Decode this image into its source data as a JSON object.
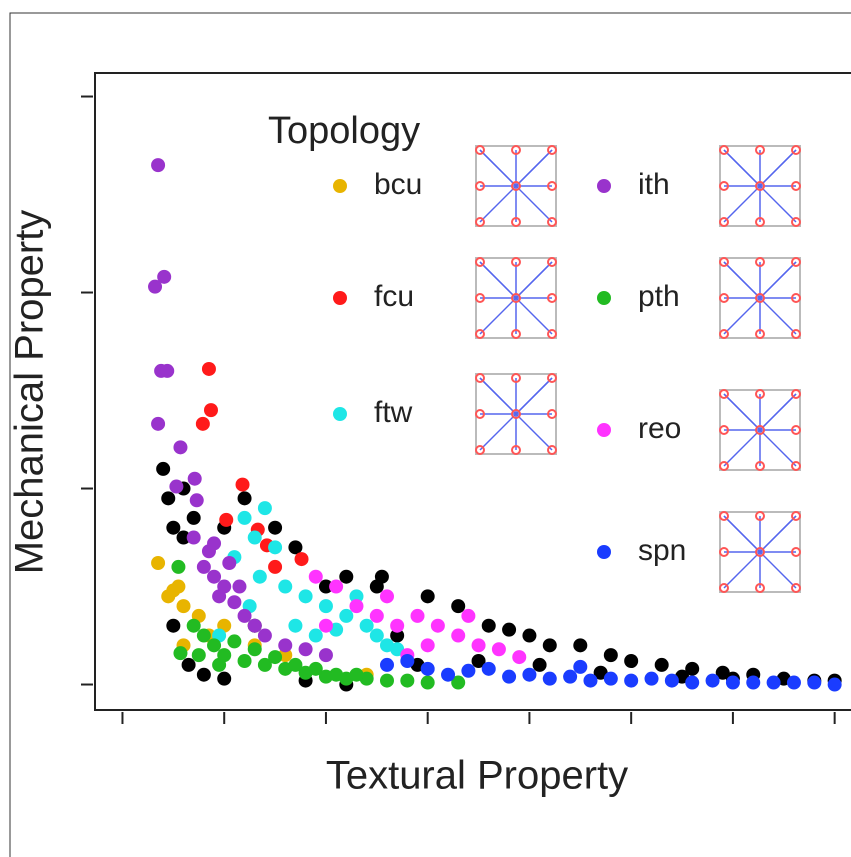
{
  "chart_data": {
    "type": "scatter",
    "x_label": "Textural Property",
    "y_label": "Mechanical Property",
    "legend_title": "Topology",
    "xlim": [
      -0.27,
      7.2
    ],
    "ylim": [
      -0.13,
      3.12
    ],
    "xticks": [
      0,
      1,
      2,
      3,
      4,
      5,
      6,
      7
    ],
    "yticks": [
      0,
      1,
      2,
      3
    ],
    "series": [
      {
        "color": "#000000",
        "x": [
          0.4,
          0.45,
          0.5,
          0.6,
          0.7,
          0.5,
          0.65,
          0.8,
          1.0,
          1.3,
          1.5,
          1.7,
          2.0,
          2.2,
          2.5,
          2.55,
          3.0,
          3.3,
          3.6,
          4.0,
          4.2,
          4.5,
          4.8,
          5.0,
          5.3,
          5.6,
          5.9,
          6.2,
          6.5,
          6.8,
          7.0,
          1.8,
          2.2,
          2.9,
          3.5,
          4.1,
          4.7,
          5.5,
          6.0,
          1.2,
          1.0,
          2.7,
          3.8,
          0.6
        ],
        "values": [
          1.1,
          0.95,
          0.8,
          0.75,
          0.85,
          0.3,
          0.1,
          0.05,
          0.03,
          0.3,
          0.8,
          0.7,
          0.5,
          0.55,
          0.5,
          0.55,
          0.45,
          0.4,
          0.3,
          0.25,
          0.2,
          0.2,
          0.15,
          0.12,
          0.1,
          0.08,
          0.06,
          0.05,
          0.03,
          0.02,
          0.02,
          0.02,
          0.0,
          0.1,
          0.12,
          0.1,
          0.06,
          0.04,
          0.03,
          0.95,
          0.8,
          0.25,
          0.28,
          1.0
        ]
      },
      {
        "name": "bcu",
        "color": "#e8b400",
        "x": [
          0.35,
          0.55,
          0.5,
          0.6,
          0.45,
          0.6,
          0.75,
          1.0,
          1.3,
          1.6,
          0.85,
          2.4
        ],
        "values": [
          0.62,
          0.5,
          0.48,
          0.4,
          0.45,
          0.2,
          0.35,
          0.3,
          0.2,
          0.15,
          0.25,
          0.05
        ]
      },
      {
        "name": "fcu",
        "color": "#ff1a1a",
        "x": [
          0.85,
          0.87,
          0.79,
          1.18,
          1.02,
          1.33,
          1.42,
          1.76,
          1.5
        ],
        "values": [
          1.61,
          1.4,
          1.33,
          1.02,
          0.84,
          0.79,
          0.71,
          0.64,
          0.6
        ]
      },
      {
        "name": "ftw",
        "color": "#1ee6e6",
        "x": [
          1.2,
          1.4,
          1.3,
          1.5,
          1.6,
          1.8,
          2.0,
          2.2,
          2.4,
          2.5,
          2.6,
          1.7,
          1.9,
          2.1,
          1.1,
          1.35,
          2.3,
          2.7,
          1.25,
          0.95
        ],
        "values": [
          0.85,
          0.9,
          0.75,
          0.7,
          0.5,
          0.45,
          0.4,
          0.35,
          0.3,
          0.25,
          0.2,
          0.3,
          0.25,
          0.28,
          0.65,
          0.55,
          0.45,
          0.18,
          0.4,
          0.25
        ]
      },
      {
        "name": "ith",
        "color": "#9933cc",
        "x": [
          0.35,
          0.41,
          0.32,
          0.38,
          0.44,
          0.35,
          0.57,
          0.53,
          0.71,
          0.73,
          0.8,
          0.9,
          0.95,
          1.0,
          1.1,
          0.85,
          1.2,
          1.3,
          1.4,
          1.6,
          1.8,
          2.0,
          0.7,
          1.05,
          1.15,
          0.9
        ],
        "values": [
          2.65,
          2.08,
          2.03,
          1.6,
          1.6,
          1.33,
          1.21,
          1.01,
          1.05,
          0.94,
          0.6,
          0.55,
          0.45,
          0.5,
          0.42,
          0.68,
          0.35,
          0.3,
          0.25,
          0.2,
          0.18,
          0.15,
          0.75,
          0.62,
          0.5,
          0.72
        ]
      },
      {
        "name": "pth",
        "color": "#22bb22",
        "x": [
          0.57,
          0.55,
          0.7,
          0.8,
          0.9,
          1.0,
          1.2,
          1.4,
          1.6,
          1.8,
          2.0,
          2.2,
          2.4,
          2.6,
          2.8,
          3.0,
          3.3,
          1.1,
          1.3,
          1.5,
          1.7,
          1.9,
          2.1,
          2.3,
          0.75,
          0.95
        ],
        "values": [
          0.16,
          0.6,
          0.3,
          0.25,
          0.2,
          0.15,
          0.12,
          0.1,
          0.08,
          0.06,
          0.04,
          0.03,
          0.03,
          0.02,
          0.02,
          0.01,
          0.01,
          0.22,
          0.18,
          0.14,
          0.1,
          0.08,
          0.05,
          0.05,
          0.15,
          0.1
        ]
      },
      {
        "name": "reo",
        "color": "#ff33ff",
        "x": [
          1.9,
          2.1,
          2.3,
          2.5,
          2.7,
          2.9,
          3.1,
          3.3,
          3.5,
          3.7,
          3.0,
          2.8,
          3.9,
          2.0,
          2.6,
          3.4
        ],
        "values": [
          0.55,
          0.5,
          0.4,
          0.35,
          0.3,
          0.35,
          0.3,
          0.25,
          0.2,
          0.18,
          0.2,
          0.15,
          0.14,
          0.3,
          0.45,
          0.35
        ]
      },
      {
        "name": "spn",
        "color": "#1a3cff",
        "x": [
          2.6,
          2.8,
          3.2,
          3.4,
          3.6,
          3.8,
          4.0,
          4.2,
          4.4,
          4.5,
          4.8,
          5.0,
          5.2,
          5.4,
          5.6,
          5.8,
          6.0,
          6.2,
          6.4,
          6.6,
          6.8,
          7.0,
          3.0,
          4.6
        ],
        "values": [
          0.1,
          0.12,
          0.05,
          0.07,
          0.08,
          0.04,
          0.05,
          0.03,
          0.04,
          0.09,
          0.03,
          0.02,
          0.03,
          0.02,
          0.01,
          0.02,
          0.01,
          0.01,
          0.01,
          0.01,
          0.01,
          0.0,
          0.08,
          0.02
        ]
      }
    ]
  }
}
